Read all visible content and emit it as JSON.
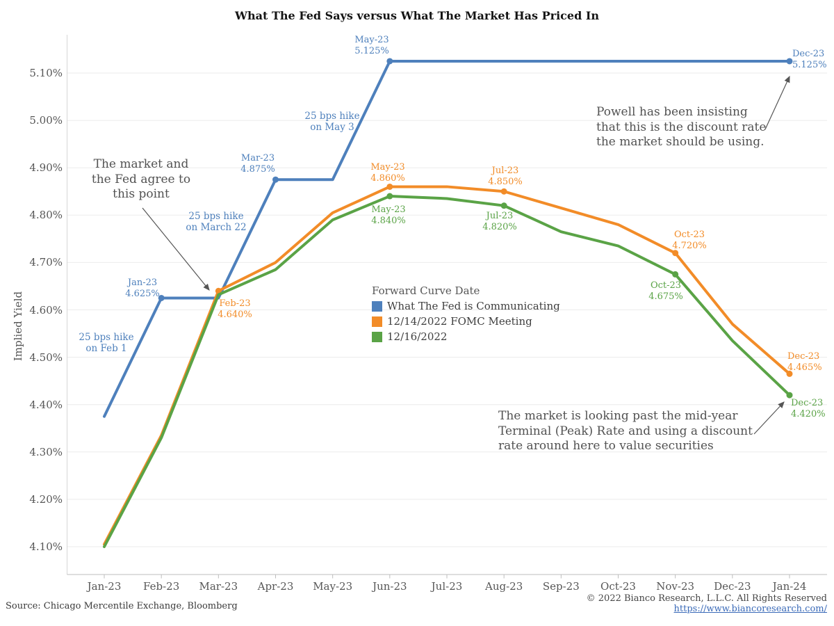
{
  "title": "What The Fed Says versus What The Market Has Priced In",
  "y_axis": {
    "label": "Implied Yield",
    "ticks": [
      "5.10%",
      "5.00%",
      "4.90%",
      "4.80%",
      "4.70%",
      "4.60%",
      "4.50%",
      "4.40%",
      "4.30%",
      "4.20%",
      "4.10%"
    ]
  },
  "x_axis": {
    "ticks": [
      "Jan-23",
      "Feb-23",
      "Mar-23",
      "Apr-23",
      "May-23",
      "Jun-23",
      "Jul-23",
      "Aug-23",
      "Sep-23",
      "Oct-23",
      "Nov-23",
      "Dec-23",
      "Jan-24"
    ]
  },
  "legend": {
    "title": "Forward Curve Date",
    "items": [
      {
        "label": "What The Fed is Communicating",
        "color": "#4e80bc"
      },
      {
        "label": "12/14/2022 FOMC Meeting",
        "color": "#f28c28"
      },
      {
        "label": "12/16/2022",
        "color": "#5aa346"
      }
    ]
  },
  "annotations": {
    "agree": "The market and\nthe Fed agree to\nthis point",
    "powell": "Powell has been insisting\nthat this is the discount rate\nthe market should be using.",
    "market": "The market is looking past the mid-year\nTerminal (Peak) Rate and using a discount\nrate around here to value securities",
    "hikes": [
      "25 bps hike\non Feb 1",
      "25 bps hike\non March 22",
      "25 bps hike\non May 3"
    ]
  },
  "footer": {
    "source": "Source: Chicago Mercentile Exchange, Bloomberg",
    "copyright": "© 2022 Bianco Research, L.L.C. All Rights Reserved",
    "link": "https://www.biancoresearch.com/"
  },
  "chart_data": {
    "type": "line",
    "title": "What The Fed Says versus What The Market Has Priced In",
    "xlabel": "",
    "ylabel": "Implied Yield",
    "ylim": [
      4.04,
      5.18
    ],
    "grid": "horizontal",
    "legend_position": "center-inside",
    "x": [
      "Jan-23",
      "Feb-23",
      "Mar-23",
      "Apr-23",
      "May-23",
      "Jun-23",
      "Jul-23",
      "Aug-23",
      "Sep-23",
      "Oct-23",
      "Nov-23",
      "Dec-23",
      "Jan-24"
    ],
    "series": [
      {
        "name": "What The Fed is Communicating",
        "color": "#4e80bc",
        "points": [
          [
            "Jan-23",
            4.375
          ],
          [
            "Feb-23",
            4.625
          ],
          [
            "Mar-23",
            4.625
          ],
          [
            "Apr-23",
            4.875
          ],
          [
            "May-23",
            4.875
          ],
          [
            "Jun-23",
            5.125
          ],
          [
            "Jan-24",
            5.125
          ]
        ],
        "markers": [
          "Feb-23",
          "Apr-23",
          "Jun-23",
          "Jan-24"
        ],
        "callouts": [
          {
            "label": "Jan-23",
            "value": "4.625%"
          },
          {
            "label": "Mar-23",
            "value": "4.875%"
          },
          {
            "label": "May-23",
            "value": "5.125%"
          },
          {
            "label": "Dec-23",
            "value": "5.125%"
          }
        ]
      },
      {
        "name": "12/14/2022 FOMC Meeting",
        "color": "#f28c28",
        "points": [
          [
            "Jan-23",
            4.105
          ],
          [
            "Feb-23",
            4.335
          ],
          [
            "Mar-23",
            4.64
          ],
          [
            "Apr-23",
            4.7
          ],
          [
            "May-23",
            4.805
          ],
          [
            "Jun-23",
            4.86
          ],
          [
            "Jul-23",
            4.86
          ],
          [
            "Aug-23",
            4.85
          ],
          [
            "Sep-23",
            4.815
          ],
          [
            "Oct-23",
            4.78
          ],
          [
            "Nov-23",
            4.72
          ],
          [
            "Dec-23",
            4.57
          ],
          [
            "Jan-24",
            4.465
          ]
        ],
        "markers": [
          "Mar-23",
          "Jun-23",
          "Aug-23",
          "Nov-23",
          "Jan-24"
        ],
        "callouts": [
          {
            "label": "Feb-23",
            "value": "4.640%"
          },
          {
            "label": "May-23",
            "value": "4.860%"
          },
          {
            "label": "Jul-23",
            "value": "4.850%"
          },
          {
            "label": "Oct-23",
            "value": "4.720%"
          },
          {
            "label": "Dec-23",
            "value": "4.465%"
          }
        ]
      },
      {
        "name": "12/16/2022",
        "color": "#5aa346",
        "points": [
          [
            "Jan-23",
            4.1
          ],
          [
            "Feb-23",
            4.33
          ],
          [
            "Mar-23",
            4.632
          ],
          [
            "Apr-23",
            4.685
          ],
          [
            "May-23",
            4.79
          ],
          [
            "Jun-23",
            4.84
          ],
          [
            "Jul-23",
            4.835
          ],
          [
            "Aug-23",
            4.82
          ],
          [
            "Sep-23",
            4.765
          ],
          [
            "Oct-23",
            4.735
          ],
          [
            "Nov-23",
            4.675
          ],
          [
            "Dec-23",
            4.535
          ],
          [
            "Jan-24",
            4.42
          ]
        ],
        "markers": [
          "Jun-23",
          "Aug-23",
          "Nov-23",
          "Jan-24"
        ],
        "callouts": [
          {
            "label": "May-23",
            "value": "4.840%"
          },
          {
            "label": "Jul-23",
            "value": "4.820%"
          },
          {
            "label": "Oct-23",
            "value": "4.675%"
          },
          {
            "label": "Dec-23",
            "value": "4.420%"
          }
        ]
      }
    ]
  }
}
